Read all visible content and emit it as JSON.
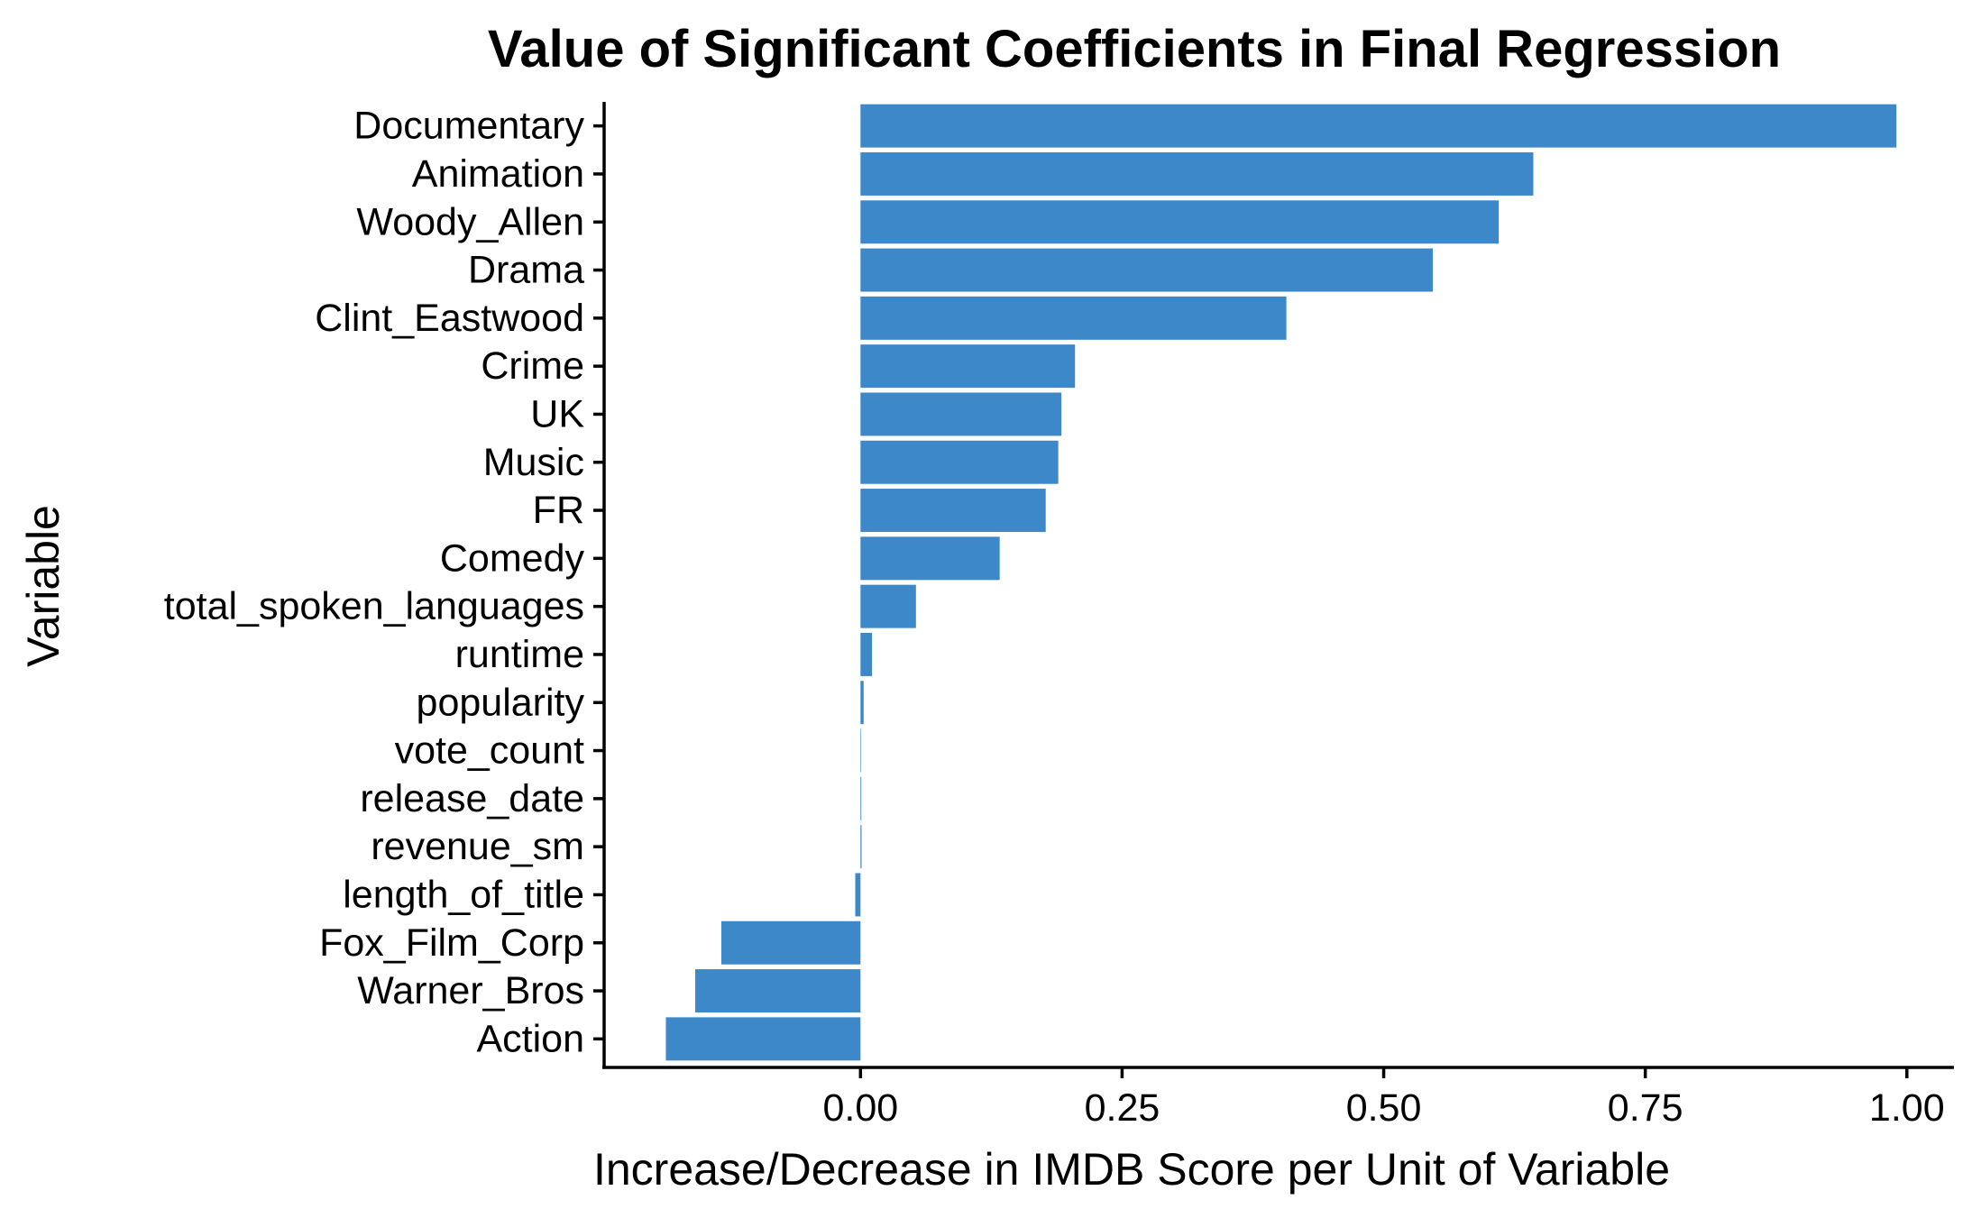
{
  "chart_data": {
    "type": "bar",
    "orientation": "horizontal",
    "title": "Value of Significant Coefficients in Final Regression",
    "xlabel": "Increase/Decrease in IMDB Score per Unit of Variable",
    "ylabel": "Variable",
    "categories": [
      "Documentary",
      "Animation",
      "Woody_Allen",
      "Drama",
      "Clint_Eastwood",
      "Crime",
      "UK",
      "Music",
      "FR",
      "Comedy",
      "total_spoken_languages",
      "runtime",
      "popularity",
      "vote_count",
      "release_date",
      "revenue_sm",
      "length_of_title",
      "Fox_Film_Corp",
      "Warner_Bros",
      "Action"
    ],
    "values": [
      0.99,
      0.643,
      0.61,
      0.547,
      0.407,
      0.205,
      0.192,
      0.189,
      0.177,
      0.133,
      0.053,
      0.011,
      0.003,
      0.0005,
      0.0008,
      0.001,
      -0.005,
      -0.133,
      -0.158,
      -0.186
    ],
    "xlim": [
      -0.245,
      1.045
    ],
    "xticks": [
      0.0,
      0.25,
      0.5,
      0.75,
      1.0
    ],
    "xtick_labels": [
      "0.00",
      "0.25",
      "0.50",
      "0.75",
      "1.00"
    ],
    "bar_color": "#3d88c9",
    "grid": false,
    "legend": "none"
  }
}
